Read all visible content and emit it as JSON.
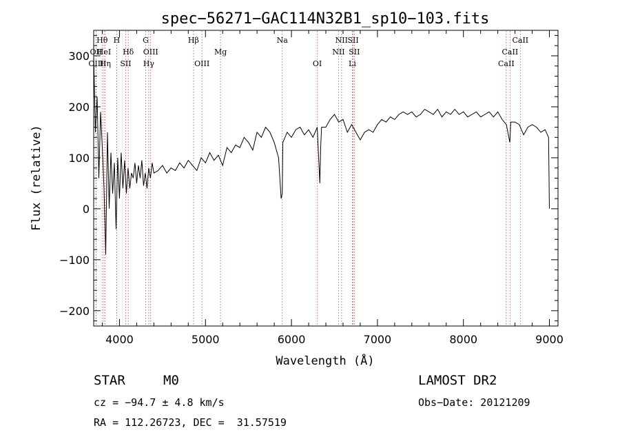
{
  "chart_data": {
    "type": "line",
    "title": "spec−56271−GAC114N32B1_sp10−103.fits",
    "xlabel": "Wavelength (Å)",
    "ylabel": "Flux (relative)",
    "xlim": [
      3700,
      9100
    ],
    "ylim": [
      -230,
      350
    ],
    "xticks": [
      4000,
      5000,
      6000,
      7000,
      8000,
      9000
    ],
    "yticks": [
      -200,
      -100,
      0,
      100,
      200,
      300
    ],
    "ytick_labels": [
      "−200",
      "−100",
      "0",
      "100",
      "200",
      "300"
    ],
    "grid": false,
    "series": [
      {
        "x": [
          3700,
          3720,
          3740,
          3760,
          3780,
          3800,
          3820,
          3840,
          3860,
          3880,
          3900,
          3920,
          3940,
          3960,
          3980,
          4000,
          4020,
          4040,
          4060,
          4080,
          4100,
          4120,
          4140,
          4160,
          4180,
          4200,
          4220,
          4240,
          4260,
          4280,
          4300,
          4320,
          4340,
          4360,
          4380,
          4400,
          4450,
          4500,
          4550,
          4600,
          4650,
          4700,
          4750,
          4800,
          4850,
          4900,
          4950,
          5000,
          5050,
          5100,
          5150,
          5200,
          5250,
          5300,
          5350,
          5400,
          5450,
          5500,
          5550,
          5600,
          5650,
          5700,
          5750,
          5800,
          5850,
          5880,
          5893,
          5900,
          5950,
          6000,
          6050,
          6100,
          6150,
          6200,
          6250,
          6300,
          6330,
          6340,
          6350,
          6400,
          6450,
          6500,
          6550,
          6600,
          6650,
          6700,
          6750,
          6800,
          6850,
          6900,
          6950,
          7000,
          7050,
          7100,
          7150,
          7200,
          7250,
          7300,
          7350,
          7400,
          7450,
          7500,
          7550,
          7600,
          7650,
          7700,
          7750,
          7800,
          7850,
          7900,
          7950,
          8000,
          8050,
          8100,
          8150,
          8200,
          8250,
          8300,
          8350,
          8400,
          8450,
          8500,
          8540,
          8550,
          8600,
          8650,
          8700,
          8750,
          8800,
          8850,
          8900,
          8950,
          8990,
          9000
        ],
        "y": [
          300,
          150,
          220,
          60,
          190,
          120,
          40,
          -90,
          150,
          0,
          110,
          30,
          90,
          -40,
          100,
          20,
          110,
          40,
          95,
          30,
          80,
          40,
          70,
          60,
          90,
          50,
          85,
          60,
          95,
          45,
          70,
          40,
          80,
          60,
          90,
          70,
          75,
          85,
          70,
          80,
          75,
          90,
          80,
          95,
          85,
          75,
          100,
          90,
          110,
          95,
          105,
          85,
          120,
          110,
          125,
          120,
          140,
          130,
          115,
          150,
          140,
          160,
          150,
          130,
          100,
          20,
          30,
          130,
          150,
          140,
          155,
          160,
          145,
          155,
          140,
          160,
          50,
          120,
          160,
          160,
          175,
          185,
          170,
          175,
          150,
          165,
          150,
          135,
          150,
          155,
          150,
          165,
          175,
          170,
          180,
          175,
          185,
          190,
          185,
          190,
          180,
          185,
          195,
          190,
          185,
          195,
          180,
          190,
          185,
          195,
          185,
          190,
          180,
          185,
          190,
          180,
          185,
          190,
          180,
          190,
          175,
          165,
          130,
          170,
          170,
          165,
          145,
          160,
          165,
          160,
          150,
          155,
          140,
          0
        ]
      }
    ],
    "lines": [
      {
        "name": "Hθ",
        "wl": 3798,
        "row": 0
      },
      {
        "name": "OII",
        "wl": 3727,
        "row": 1
      },
      {
        "name": "OIII",
        "wl": 3727,
        "row": 2
      },
      {
        "name": "HeI",
        "wl": 3820,
        "row": 1
      },
      {
        "name": "Hη",
        "wl": 3835,
        "row": 2
      },
      {
        "name": "H",
        "wl": 3968,
        "row": 0
      },
      {
        "name": "Hδ",
        "wl": 4102,
        "row": 1
      },
      {
        "name": "SII",
        "wl": 4072,
        "row": 2
      },
      {
        "name": "G",
        "wl": 4305,
        "row": 0
      },
      {
        "name": "OIII",
        "wl": 4363,
        "row": 1
      },
      {
        "name": "Hγ",
        "wl": 4340,
        "row": 2
      },
      {
        "name": "Hβ",
        "wl": 4861,
        "row": 0
      },
      {
        "name": "OIII",
        "wl": 4959,
        "row": 2
      },
      {
        "name": "Mg",
        "wl": 5175,
        "row": 1
      },
      {
        "name": "Na",
        "wl": 5893,
        "row": 0
      },
      {
        "name": "OI",
        "wl": 6300,
        "row": 2
      },
      {
        "name": "NII",
        "wl": 6583,
        "row": 0
      },
      {
        "name": "NII",
        "wl": 6548,
        "row": 1
      },
      {
        "name": "SII",
        "wl": 6717,
        "row": 0
      },
      {
        "name": "SII",
        "wl": 6731,
        "row": 1
      },
      {
        "name": "Li",
        "wl": 6708,
        "row": 2
      },
      {
        "name": "CaII",
        "wl": 8662,
        "row": 0
      },
      {
        "name": "CaII",
        "wl": 8542,
        "row": 1
      },
      {
        "name": "CaII",
        "wl": 8498,
        "row": 2
      }
    ],
    "colors": {
      "line_marker": "#d04040",
      "spectrum": "#000000"
    }
  },
  "info": {
    "object_type": "STAR",
    "subclass": "M0",
    "survey": "LAMOST DR2",
    "redshift": "cz = −94.7 ± 4.8 km/s",
    "obs_date": "Obs−Date: 20121209",
    "coords": "RA = 112.26723, DEC =  31.57519"
  }
}
